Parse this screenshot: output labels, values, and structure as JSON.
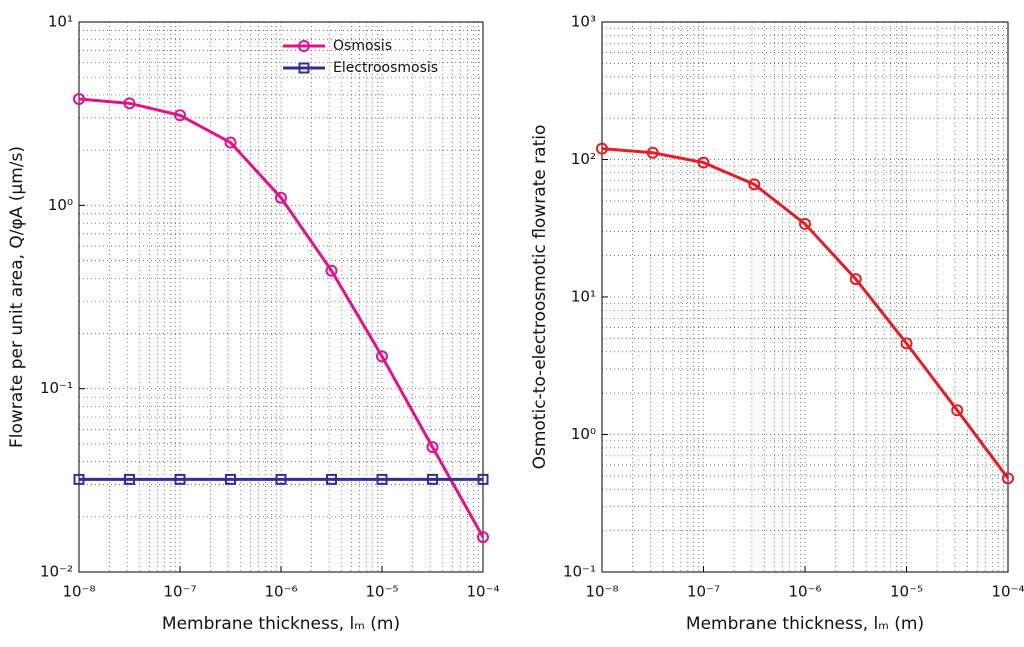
{
  "chart_data": [
    {
      "type": "line",
      "log_x": true,
      "log_y": true,
      "grid": true,
      "legend": "upper right",
      "xlabel": "Membrane thickness, lₘ (m)",
      "ylabel": "Flowrate per unit area, Q/φA (μm/s)",
      "x": [
        1e-08,
        3.162e-08,
        1e-07,
        3.162e-07,
        1e-06,
        3.162e-06,
        1e-05,
        3.162e-05,
        0.0001
      ],
      "series": [
        {
          "name": "Osmosis",
          "color": "#e0128e",
          "marker": "circle",
          "values": [
            3.8,
            3.6,
            3.1,
            2.2,
            1.1,
            0.44,
            0.15,
            0.048,
            0.0155
          ]
        },
        {
          "name": "Electroosmosis",
          "color": "#2e3192",
          "marker": "square",
          "values": [
            0.032,
            0.032,
            0.032,
            0.032,
            0.032,
            0.032,
            0.032,
            0.032,
            0.032
          ]
        }
      ],
      "xlim": [
        1e-08,
        0.0001
      ],
      "xticks": [
        {
          "value": 1e-08,
          "label": "10⁻⁸"
        },
        {
          "value": 1e-07,
          "label": "10⁻⁷"
        },
        {
          "value": 1e-06,
          "label": "10⁻⁶"
        },
        {
          "value": 1e-05,
          "label": "10⁻⁵"
        },
        {
          "value": 0.0001,
          "label": "10⁻⁴"
        }
      ],
      "ylim": [
        0.01,
        10
      ],
      "yticks": [
        {
          "value": 0.01,
          "label": "10⁻²"
        },
        {
          "value": 0.1,
          "label": "10⁻¹"
        },
        {
          "value": 1,
          "label": "10⁰"
        },
        {
          "value": 10,
          "label": "10¹"
        }
      ]
    },
    {
      "type": "line",
      "log_x": true,
      "log_y": true,
      "grid": true,
      "xlabel": "Membrane thickness, lₘ (m)",
      "ylabel": "Osmotic-to-electroosmotic flowrate ratio",
      "x": [
        1e-08,
        3.162e-08,
        1e-07,
        3.162e-07,
        1e-06,
        3.162e-06,
        1e-05,
        3.162e-05,
        0.0001
      ],
      "series": [
        {
          "color": "#e31e24",
          "marker": "circle",
          "values": [
            120,
            112,
            95,
            66,
            34,
            13.5,
            4.6,
            1.5,
            0.48
          ]
        }
      ],
      "xlim": [
        1e-08,
        0.0001
      ],
      "xticks": [
        {
          "value": 1e-08,
          "label": "10⁻⁸"
        },
        {
          "value": 1e-07,
          "label": "10⁻⁷"
        },
        {
          "value": 1e-06,
          "label": "10⁻⁶"
        },
        {
          "value": 1e-05,
          "label": "10⁻⁵"
        },
        {
          "value": 0.0001,
          "label": "10⁻⁴"
        }
      ],
      "ylim": [
        0.1,
        1000
      ],
      "yticks": [
        {
          "value": 0.1,
          "label": "10⁻¹"
        },
        {
          "value": 1,
          "label": "10⁰"
        },
        {
          "value": 10,
          "label": "10¹"
        },
        {
          "value": 100,
          "label": "10²"
        },
        {
          "value": 1000,
          "label": "10³"
        }
      ]
    }
  ]
}
